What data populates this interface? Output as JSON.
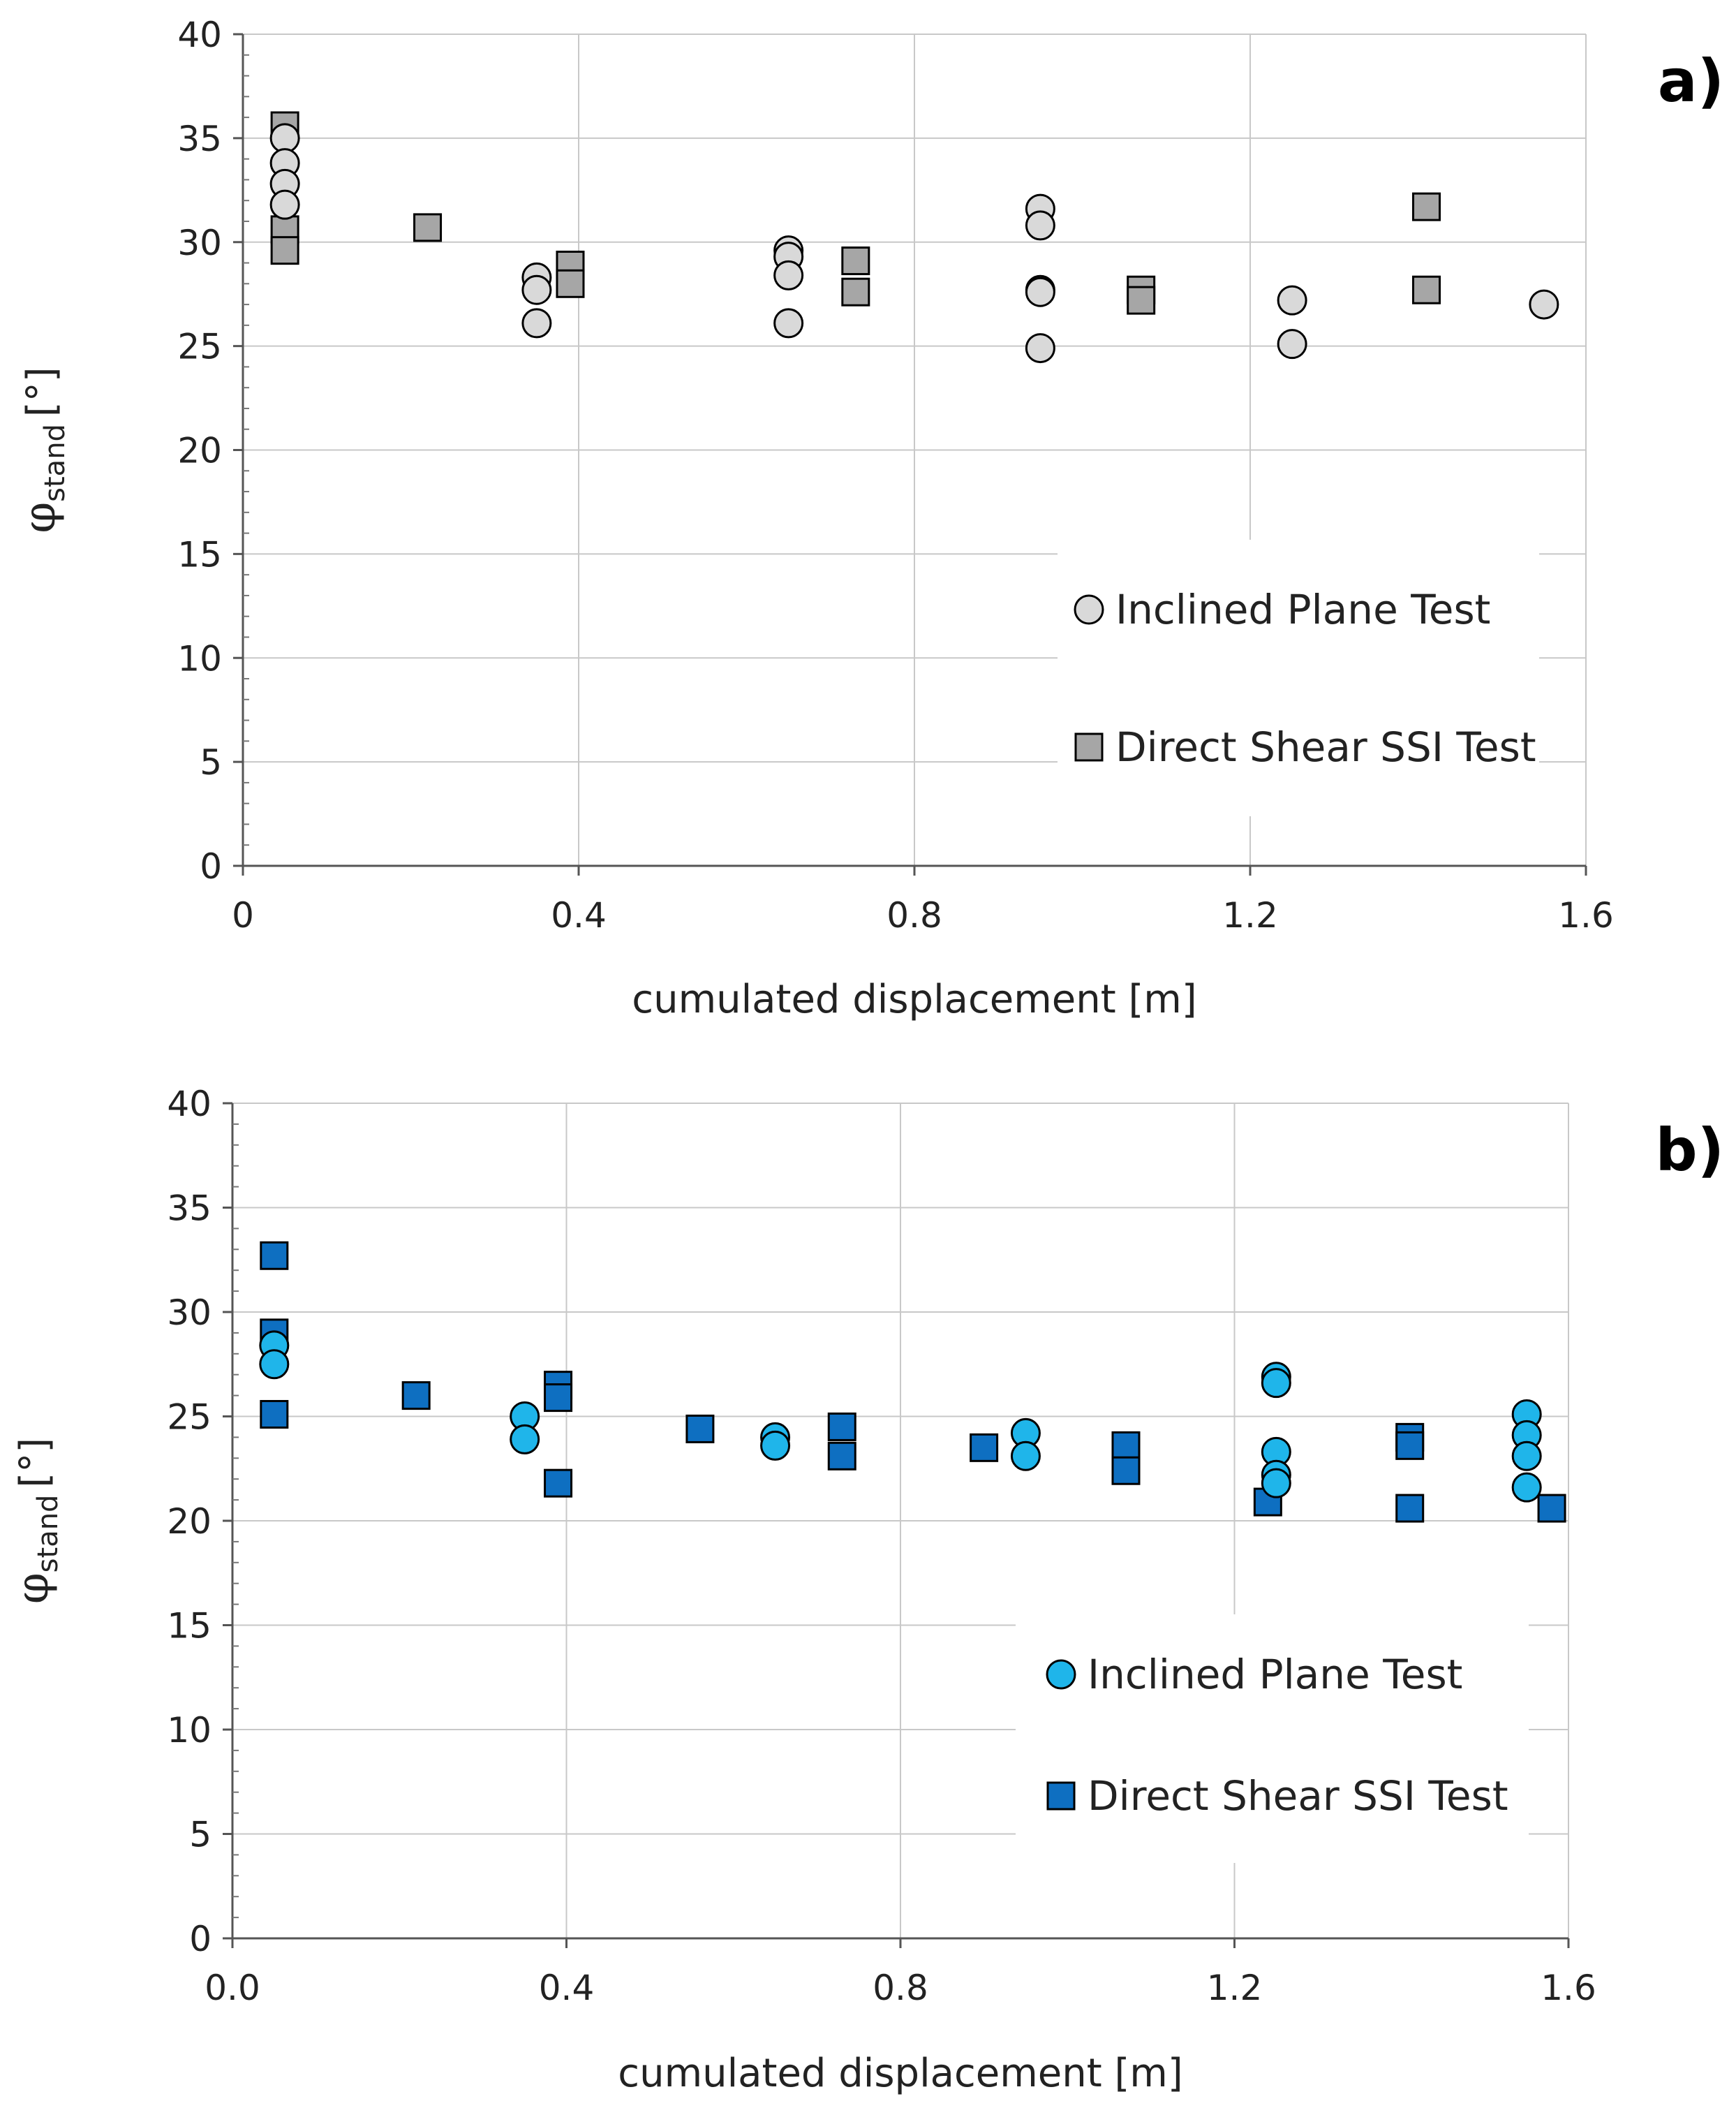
{
  "chart_data": [
    {
      "type": "scatter",
      "panel_label": "a)",
      "xlabel": "cumulated displacement [m]",
      "ylabel": {
        "symbol": "φ",
        "subscript": "stand",
        "unit": "[°]"
      },
      "xlim": [
        0,
        1.6
      ],
      "ylim": [
        0,
        40
      ],
      "x_ticks": [
        "0",
        "0.4",
        "0.8",
        "1.2",
        "1.6"
      ],
      "x_tick_values": [
        0,
        0.4,
        0.8,
        1.2,
        1.6
      ],
      "y_ticks": [
        "0",
        "5",
        "10",
        "15",
        "20",
        "25",
        "30",
        "35",
        "40"
      ],
      "y_tick_values": [
        0,
        5,
        10,
        15,
        20,
        25,
        30,
        35,
        40
      ],
      "grid": {
        "vertical": true,
        "horizontal": true
      },
      "legend_position": "bottom-right",
      "series": [
        {
          "name": "Inclined Plane Test",
          "marker": "circle",
          "color": "#d9d9d9",
          "points": [
            [
              0.05,
              35.0
            ],
            [
              0.05,
              33.8
            ],
            [
              0.05,
              32.8
            ],
            [
              0.05,
              31.8
            ],
            [
              0.35,
              28.3
            ],
            [
              0.35,
              27.7
            ],
            [
              0.35,
              26.1
            ],
            [
              0.65,
              29.6
            ],
            [
              0.65,
              29.3
            ],
            [
              0.65,
              28.4
            ],
            [
              0.65,
              26.1
            ],
            [
              0.95,
              31.6
            ],
            [
              0.95,
              30.8
            ],
            [
              0.95,
              27.7
            ],
            [
              0.95,
              27.6
            ],
            [
              0.95,
              24.9
            ],
            [
              1.25,
              27.2
            ],
            [
              1.25,
              25.1
            ],
            [
              1.55,
              27.0
            ]
          ]
        },
        {
          "name": "Direct Shear SSI Test",
          "marker": "square",
          "color": "#a6a6a6",
          "points": [
            [
              0.05,
              35.6
            ],
            [
              0.05,
              30.6
            ],
            [
              0.05,
              29.6
            ],
            [
              0.22,
              30.7
            ],
            [
              0.39,
              28.9
            ],
            [
              0.39,
              28.0
            ],
            [
              0.73,
              29.1
            ],
            [
              0.73,
              27.6
            ],
            [
              1.07,
              27.7
            ],
            [
              1.07,
              27.2
            ],
            [
              1.41,
              31.7
            ],
            [
              1.41,
              27.7
            ]
          ]
        }
      ]
    },
    {
      "type": "scatter",
      "panel_label": "b)",
      "xlabel": "cumulated displacement [m]",
      "ylabel": {
        "symbol": "φ",
        "subscript": "stand",
        "unit": "[°]"
      },
      "xlim": [
        0,
        1.6
      ],
      "ylim": [
        0,
        40
      ],
      "x_ticks": [
        "0.0",
        "0.4",
        "0.8",
        "1.2",
        "1.6"
      ],
      "x_tick_values": [
        0,
        0.4,
        0.8,
        1.2,
        1.6
      ],
      "y_ticks": [
        "0",
        "5",
        "10",
        "15",
        "20",
        "25",
        "30",
        "35",
        "40"
      ],
      "y_tick_values": [
        0,
        5,
        10,
        15,
        20,
        25,
        30,
        35,
        40
      ],
      "grid": {
        "vertical": true,
        "horizontal": true
      },
      "legend_position": "bottom-right",
      "series": [
        {
          "name": "Inclined Plane Test",
          "marker": "circle",
          "color": "#1fb5ea",
          "points": [
            [
              0.05,
              28.4
            ],
            [
              0.05,
              27.5
            ],
            [
              0.35,
              25.0
            ],
            [
              0.35,
              23.9
            ],
            [
              0.65,
              24.0
            ],
            [
              0.65,
              23.6
            ],
            [
              0.95,
              24.2
            ],
            [
              0.95,
              23.1
            ],
            [
              1.25,
              26.9
            ],
            [
              1.25,
              26.6
            ],
            [
              1.25,
              23.3
            ],
            [
              1.25,
              22.2
            ],
            [
              1.25,
              21.8
            ],
            [
              1.55,
              25.1
            ],
            [
              1.55,
              24.1
            ],
            [
              1.55,
              23.1
            ],
            [
              1.55,
              21.6
            ]
          ]
        },
        {
          "name": "Direct Shear SSI Test",
          "marker": "square",
          "color": "#0e6fc1",
          "points": [
            [
              0.05,
              32.7
            ],
            [
              0.05,
              29.0
            ],
            [
              0.05,
              25.1
            ],
            [
              0.22,
              26.0
            ],
            [
              0.39,
              26.5
            ],
            [
              0.39,
              25.9
            ],
            [
              0.39,
              21.8
            ],
            [
              0.56,
              24.4
            ],
            [
              0.73,
              24.5
            ],
            [
              0.73,
              23.1
            ],
            [
              0.9,
              23.5
            ],
            [
              1.07,
              23.6
            ],
            [
              1.07,
              22.4
            ],
            [
              1.24,
              20.9
            ],
            [
              1.41,
              24.0
            ],
            [
              1.41,
              23.6
            ],
            [
              1.41,
              20.6
            ],
            [
              1.58,
              20.6
            ]
          ]
        }
      ]
    }
  ]
}
